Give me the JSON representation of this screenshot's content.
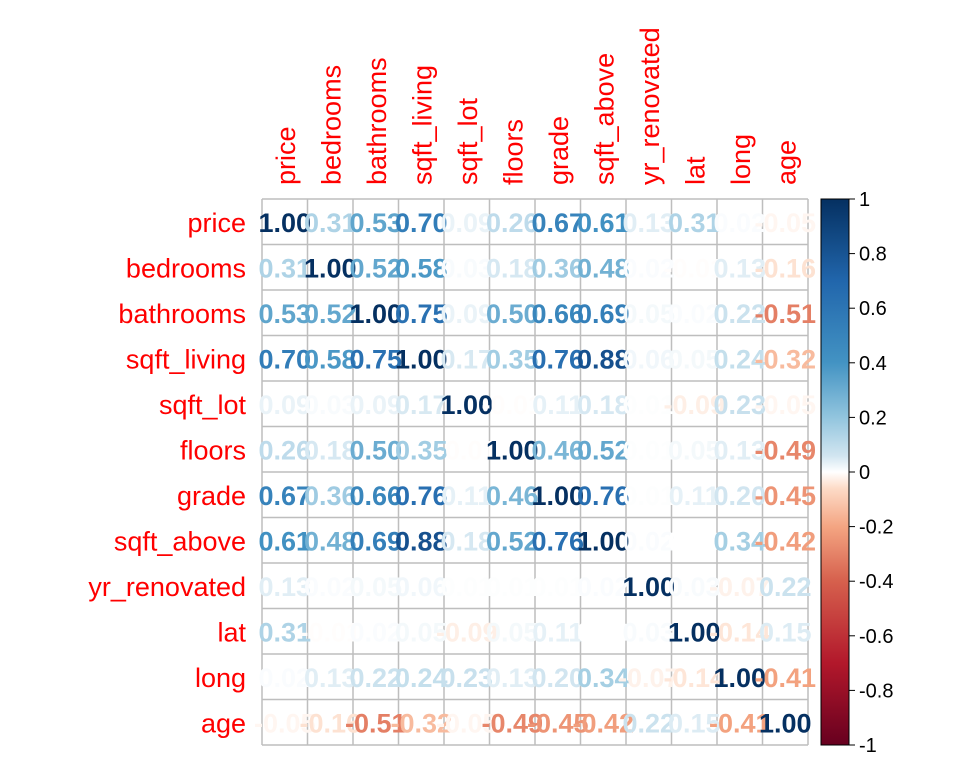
{
  "chart_data": {
    "type": "heatmap",
    "title": "",
    "variables": [
      "price",
      "bedrooms",
      "bathrooms",
      "sqft_living",
      "sqft_lot",
      "floors",
      "grade",
      "sqft_above",
      "yr_renovated",
      "lat",
      "long",
      "age"
    ],
    "matrix": [
      [
        1.0,
        0.31,
        0.53,
        0.7,
        0.09,
        0.26,
        0.67,
        0.61,
        0.13,
        0.31,
        0.02,
        -0.05
      ],
      [
        0.31,
        1.0,
        0.52,
        0.58,
        0.03,
        0.18,
        0.36,
        0.48,
        0.02,
        -0.01,
        0.13,
        -0.16
      ],
      [
        0.53,
        0.52,
        1.0,
        0.75,
        0.09,
        0.5,
        0.66,
        0.69,
        0.05,
        0.02,
        0.22,
        -0.51
      ],
      [
        0.7,
        0.58,
        0.75,
        1.0,
        0.17,
        0.35,
        0.76,
        0.88,
        0.06,
        0.05,
        0.24,
        -0.32
      ],
      [
        0.09,
        0.03,
        0.09,
        0.17,
        1.0,
        -0.01,
        0.11,
        0.18,
        0.01,
        -0.09,
        0.23,
        -0.05
      ],
      [
        0.26,
        0.18,
        0.5,
        0.35,
        -0.01,
        1.0,
        0.46,
        0.52,
        0.01,
        0.05,
        0.13,
        -0.49
      ],
      [
        0.67,
        0.36,
        0.66,
        0.76,
        0.11,
        0.46,
        1.0,
        0.76,
        0.01,
        0.11,
        0.2,
        -0.45
      ],
      [
        0.61,
        0.48,
        0.69,
        0.88,
        0.18,
        0.52,
        0.76,
        1.0,
        0.02,
        0.0,
        0.34,
        -0.42
      ],
      [
        0.13,
        0.02,
        0.05,
        0.06,
        0.01,
        0.01,
        0.01,
        0.02,
        1.0,
        0.03,
        -0.07,
        0.22
      ],
      [
        0.31,
        -0.01,
        0.02,
        0.05,
        -0.09,
        0.05,
        0.11,
        0.0,
        0.03,
        1.0,
        -0.14,
        0.15
      ],
      [
        0.02,
        0.13,
        0.22,
        0.24,
        0.23,
        0.13,
        0.2,
        0.34,
        -0.07,
        -0.14,
        1.0,
        -0.41
      ],
      [
        -0.05,
        -0.16,
        -0.51,
        -0.32,
        -0.05,
        -0.49,
        -0.45,
        -0.42,
        0.22,
        0.15,
        -0.41,
        1.0
      ]
    ],
    "colorbar": {
      "ticks": [
        1,
        0.8,
        0.6,
        0.4,
        0.2,
        0,
        -0.2,
        -0.4,
        -0.6,
        -0.8,
        -1
      ],
      "tick_labels": [
        "1",
        "0.8",
        "0.6",
        "0.4",
        "0.2",
        "0",
        "-0.2",
        "-0.4",
        "-0.6",
        "-0.8",
        "-1"
      ],
      "range": [
        -1,
        1
      ]
    },
    "colors": {
      "positive": "#053061",
      "mid_pos": "#4393c3",
      "neutral": "#ffffff",
      "mid_neg": "#d6604d",
      "negative": "#67001f",
      "label": "#ff0000",
      "grid": "#bebebe"
    }
  }
}
